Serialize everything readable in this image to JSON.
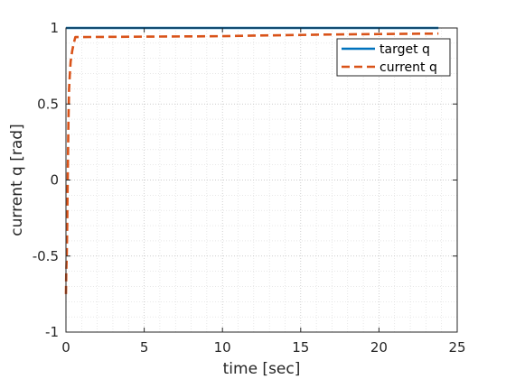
{
  "chart_data": {
    "type": "line",
    "title": "",
    "xlabel": "time [sec]",
    "ylabel": "current q [rad]",
    "xlim": [
      0,
      25
    ],
    "ylim": [
      -1,
      1
    ],
    "xticks": [
      0,
      5,
      10,
      15,
      20,
      25
    ],
    "yticks": [
      -1,
      -0.5,
      0,
      0.5,
      1
    ],
    "xtick_labels": [
      "0",
      "5",
      "10",
      "15",
      "20",
      "25"
    ],
    "ytick_labels": [
      "-1",
      "-0.5",
      "0",
      "0.5",
      "1"
    ],
    "grid": "on (major and minor, dotted)",
    "legend_location": "top-right",
    "series": [
      {
        "name": "target q",
        "style": "solid",
        "color": "#0072BD",
        "x": [
          0,
          23.8
        ],
        "y": [
          1,
          1
        ]
      },
      {
        "name": "current q",
        "style": "dashed",
        "color": "#D95319",
        "x": [
          0,
          0.02,
          0.05,
          0.08,
          0.1,
          0.13,
          0.16,
          0.2,
          0.25,
          0.3,
          0.4,
          0.5,
          0.6,
          1,
          2,
          5,
          10,
          12,
          15,
          16,
          20,
          22,
          23.8
        ],
        "y": [
          -0.75,
          -0.6,
          -0.5,
          -0.3,
          -0.1,
          0.15,
          0.4,
          0.6,
          0.7,
          0.78,
          0.85,
          0.9,
          0.94,
          0.94,
          0.941,
          0.943,
          0.946,
          0.95,
          0.954,
          0.956,
          0.96,
          0.962,
          0.963
        ]
      }
    ]
  }
}
